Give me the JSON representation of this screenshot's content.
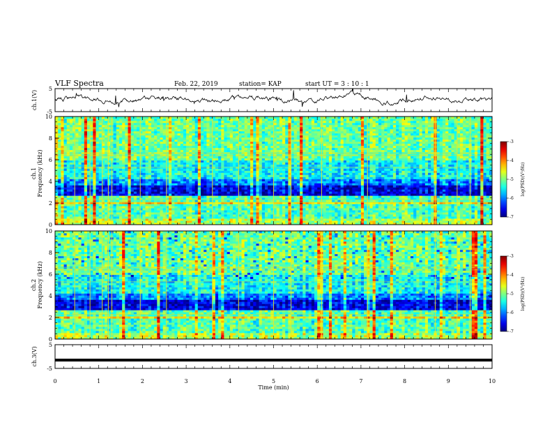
{
  "header": {
    "title": "VLF Spectra",
    "date": "Feb. 22, 2019",
    "station": "station= KAP",
    "start": "start  UT =   3  : 10 : 1"
  },
  "chart_data": [
    {
      "type": "line",
      "panel": "ch1-waveform",
      "ylabel": "ch.1(V)",
      "ylim": [
        -5,
        5
      ],
      "yticks": [
        "5",
        "-5"
      ],
      "xlim": [
        0,
        10
      ],
      "color": "#000000",
      "description_values": {
        "baseline": 0,
        "amplitude_range": [
          -2.5,
          4
        ]
      }
    },
    {
      "type": "heatmap",
      "panel": "ch1-spectrogram",
      "ylabel": "ch.1",
      "ylabel2": "Frequency (kHz)",
      "ylim": [
        0,
        10
      ],
      "yticks": [
        "0",
        "2",
        "4",
        "6",
        "8",
        "10"
      ],
      "xlim": [
        0,
        10
      ],
      "colorbar": {
        "label": "log(PSD)(V²/Hz)",
        "range": [
          -7,
          -3
        ],
        "ticks": [
          "-3",
          "-4",
          "-5",
          "-6",
          "-7"
        ]
      }
    },
    {
      "type": "heatmap",
      "panel": "ch2-spectrogram",
      "ylabel": "ch.2",
      "ylabel2": "Frequency (kHz)",
      "ylim": [
        0,
        10
      ],
      "yticks": [
        "0",
        "2",
        "4",
        "6",
        "8",
        "10"
      ],
      "xlim": [
        0,
        10
      ],
      "colorbar": {
        "label": "log(PSD)(V²/Hz)",
        "range": [
          -7,
          -3
        ],
        "ticks": [
          "-3",
          "-4",
          "-5",
          "-6",
          "-7"
        ]
      }
    },
    {
      "type": "line",
      "panel": "ch3-waveform",
      "ylabel": "ch.3(V)",
      "ylim": [
        -5,
        5
      ],
      "yticks": [
        "5",
        "-5"
      ],
      "xlim": [
        0,
        10
      ],
      "value": -1.5,
      "color": "#000000"
    }
  ],
  "xaxis": {
    "label": "Time  (min)",
    "range": [
      0,
      10
    ],
    "ticks": [
      "0",
      "1",
      "2",
      "3",
      "4",
      "5",
      "6",
      "7",
      "8",
      "9",
      "10"
    ]
  }
}
